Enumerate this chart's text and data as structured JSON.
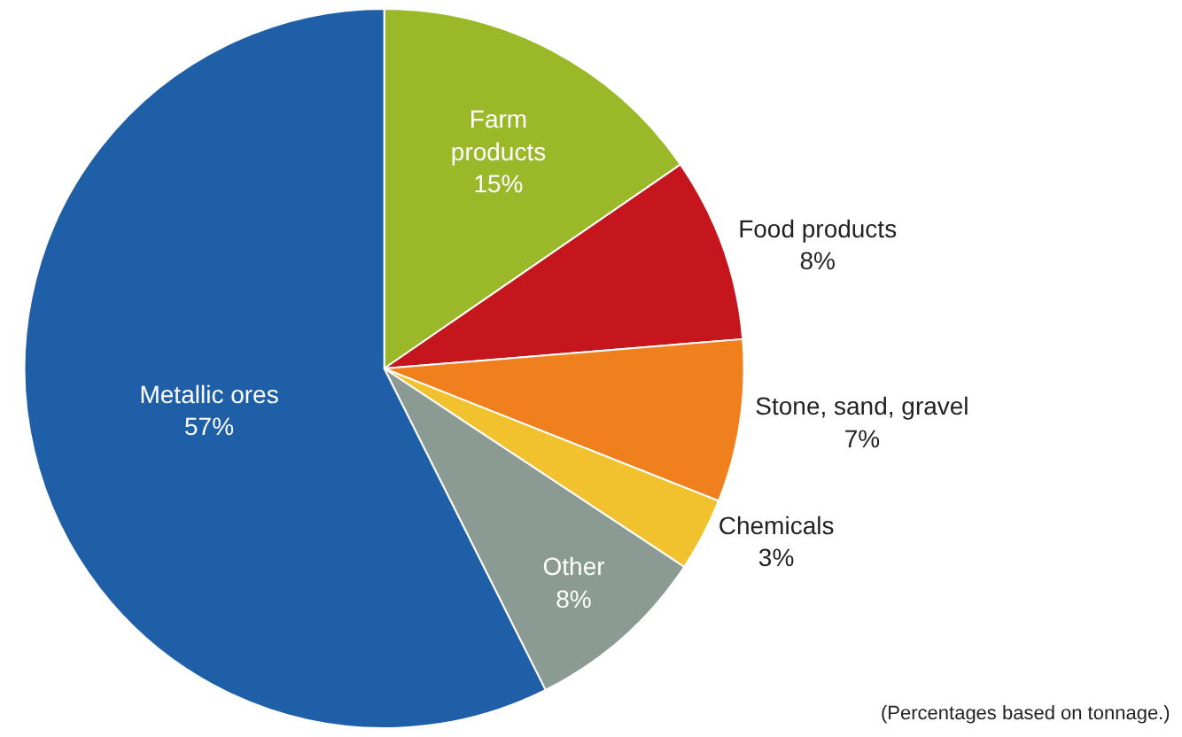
{
  "chart_data": {
    "type": "pie",
    "categories": [
      "Farm products",
      "Food products",
      "Stone, sand, gravel",
      "Chemicals",
      "Other",
      "Metallic ores"
    ],
    "values": [
      15.4,
      8.3,
      7.3,
      3.3,
      8.3,
      57.4
    ],
    "colors": [
      "#9bb829",
      "#c4161c",
      "#f0801e",
      "#f2c12e",
      "#8c9a94",
      "#1f5fa8"
    ],
    "value_labels": [
      "15%",
      "8%",
      "7%",
      "3%",
      "8%",
      "57%"
    ],
    "annotations": [
      "(Percentages based on tonnage.)"
    ],
    "legend": false
  }
}
